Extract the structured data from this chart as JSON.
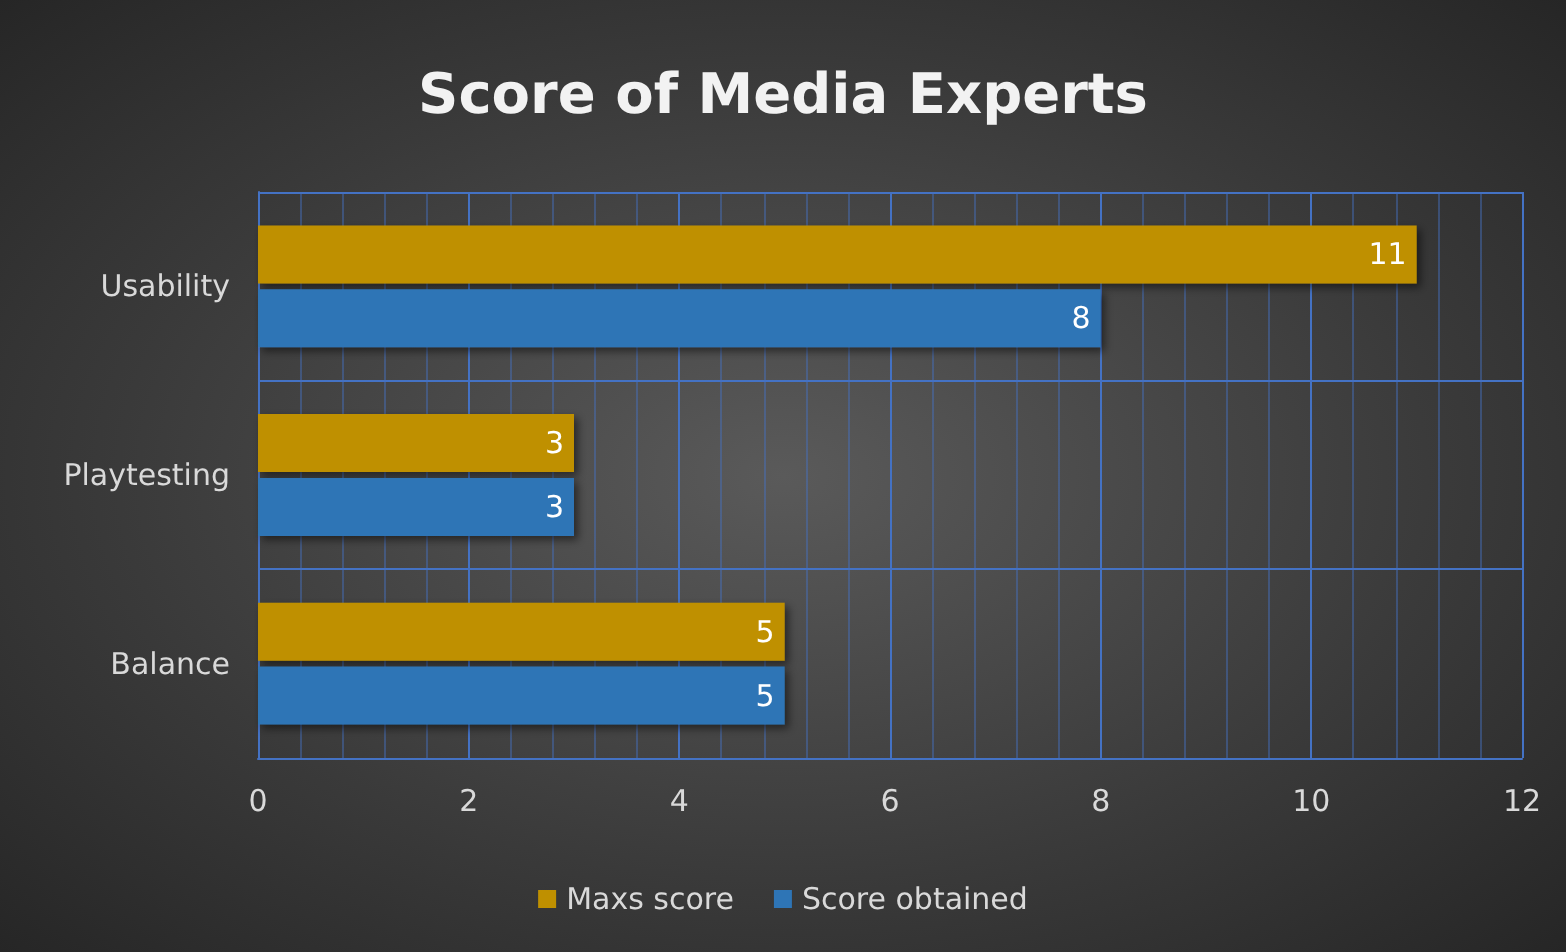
{
  "chart_data": {
    "type": "bar",
    "orientation": "horizontal",
    "title": "Score of Media Experts",
    "categories": [
      "Usability",
      "Playtesting",
      "Balance"
    ],
    "series": [
      {
        "name": "Maxs score",
        "color": "#bf9000",
        "values": [
          11,
          3,
          5
        ]
      },
      {
        "name": "Score obtained",
        "color": "#2e75b6",
        "values": [
          8,
          3,
          5
        ]
      }
    ],
    "xlim": [
      0,
      12
    ],
    "xticks": [
      0,
      {
        "value": 0.4,
        "label": null
      },
      {
        "value": 0.8,
        "label": null
      },
      {
        "value": 1.2,
        "label": null
      },
      {
        "value": 1.6,
        "label": null
      },
      2,
      {
        "value": 2.4,
        "label": null
      },
      {
        "value": 2.8,
        "label": null
      },
      {
        "value": 3.2,
        "label": null
      },
      {
        "value": 3.6,
        "label": null
      },
      4,
      {
        "value": 4.4,
        "label": null
      },
      {
        "value": 4.8,
        "label": null
      },
      {
        "value": 5.2,
        "label": null
      },
      {
        "value": 5.6,
        "label": null
      },
      6,
      {
        "value": 6.4,
        "label": null
      },
      {
        "value": 6.8,
        "label": null
      },
      {
        "value": 7.2,
        "label": null
      },
      {
        "value": 7.6,
        "label": null
      },
      8,
      {
        "value": 8.4,
        "label": null
      },
      {
        "value": 8.8,
        "label": null
      },
      {
        "value": 9.2,
        "label": null
      },
      {
        "value": 9.6,
        "label": null
      },
      10,
      {
        "value": 10.4,
        "label": null
      },
      {
        "value": 10.8,
        "label": null
      },
      {
        "value": 11.2,
        "label": null
      },
      {
        "value": 11.6,
        "label": null
      },
      12
    ],
    "grid": true,
    "legend": "bottom",
    "data_labels": true
  }
}
